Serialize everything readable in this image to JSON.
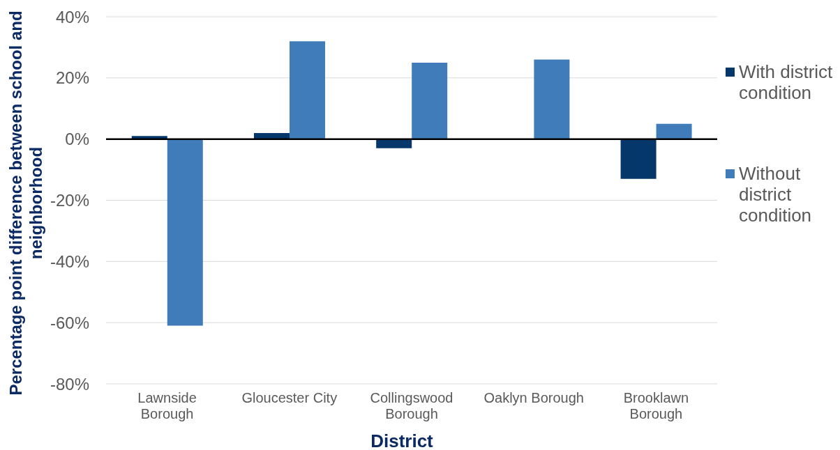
{
  "chart_data": {
    "type": "bar",
    "xlabel": "District",
    "ylabel": "Percentage point difference between school and neighborhood",
    "categories": [
      "Lawnside Borough",
      "Gloucester City",
      "Collingswood Borough",
      "Oaklyn Borough",
      "Brooklawn Borough"
    ],
    "series": [
      {
        "name": "With district condition",
        "color": "#06376b",
        "values": [
          1,
          2,
          -3,
          0,
          -13
        ]
      },
      {
        "name": "Without district condition",
        "color": "#417cba",
        "values": [
          -61,
          32,
          25,
          26,
          5
        ]
      }
    ],
    "ylim": [
      -80,
      40
    ],
    "yticks": [
      {
        "value": -80,
        "label": "-80%"
      },
      {
        "value": -60,
        "label": "-60%"
      },
      {
        "value": -40,
        "label": "-40%"
      },
      {
        "value": -20,
        "label": "-20%"
      },
      {
        "value": 0,
        "label": "0%"
      },
      {
        "value": 20,
        "label": "20%"
      },
      {
        "value": 40,
        "label": "40%"
      }
    ],
    "grid": "y",
    "legend": "right",
    "ref_lines": [
      {
        "axis": "y",
        "value": 0,
        "color": "#000000"
      }
    ]
  }
}
